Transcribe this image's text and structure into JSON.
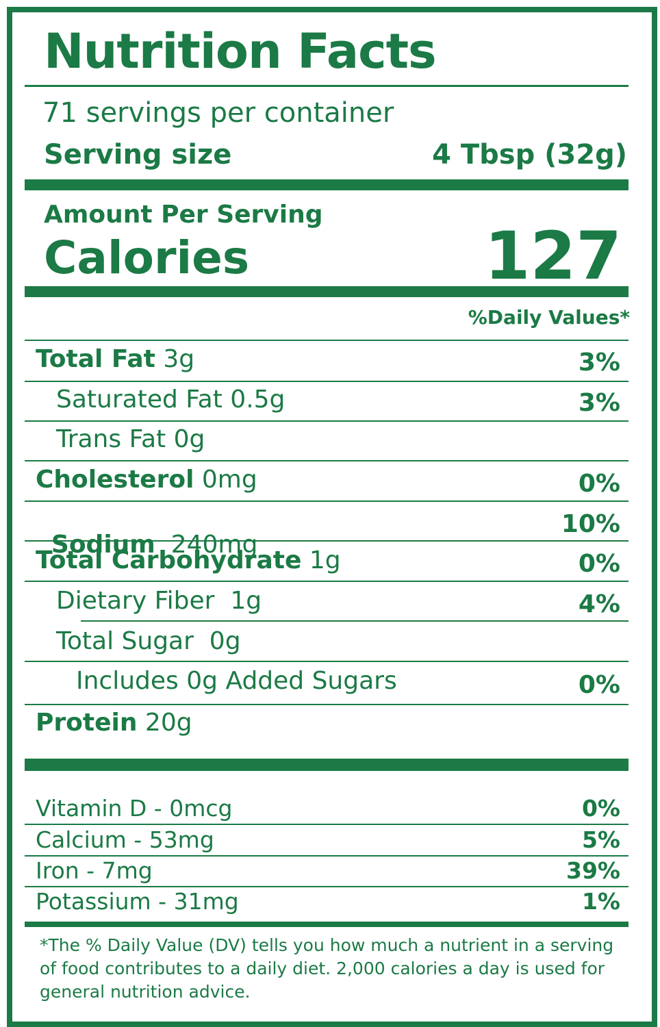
{
  "title": "Nutrition Facts",
  "servings_per_container": "71 servings per container",
  "serving_size": {
    "label": "Serving size",
    "value": "4 Tbsp (32g)"
  },
  "amount_per_serving": "Amount Per Serving",
  "calories": {
    "label": "Calories",
    "value": "127"
  },
  "daily_values_header": "%Daily Values*",
  "nutrients": [
    {
      "name": "Total Fat",
      "amount": " 3g",
      "dv": "3%"
    },
    {
      "name": "Saturated Fat 0.5g",
      "dv": "3%"
    },
    {
      "name": "Trans Fat 0g",
      "dv": ""
    },
    {
      "name": "Cholesterol",
      "amount": " 0mg",
      "dv": "0%"
    },
    {
      "name": "Sodium",
      "amount": "  240mg",
      "dv": "10%"
    },
    {
      "name": "Total Carbohydrate",
      "amount": " 1g",
      "dv": "0%"
    },
    {
      "name": "Dietary Fiber  1g",
      "dv": "4%"
    },
    {
      "name": "Total Sugar  0g",
      "dv": ""
    },
    {
      "name": "Includes 0g Added Sugars",
      "dv": "0%"
    },
    {
      "name": "Protein",
      "amount": " 20g",
      "dv": ""
    }
  ],
  "vitamins": [
    {
      "name": "Vitamin D - 0mcg",
      "dv": "0%"
    },
    {
      "name": "Calcium - 53mg",
      "dv": "5%"
    },
    {
      "name": "Iron - 7mg",
      "dv": "39%"
    },
    {
      "name": "Potassium - 31mg",
      "dv": "1%"
    }
  ],
  "footnote": "*The % Daily Value (DV) tells you how much a nutrient in a serving of food contributes to a daily diet. 2,000 calories a day is used for general nutrition advice.",
  "colors": {
    "brand_green": "#1b7a45",
    "background": "#ffffff"
  }
}
